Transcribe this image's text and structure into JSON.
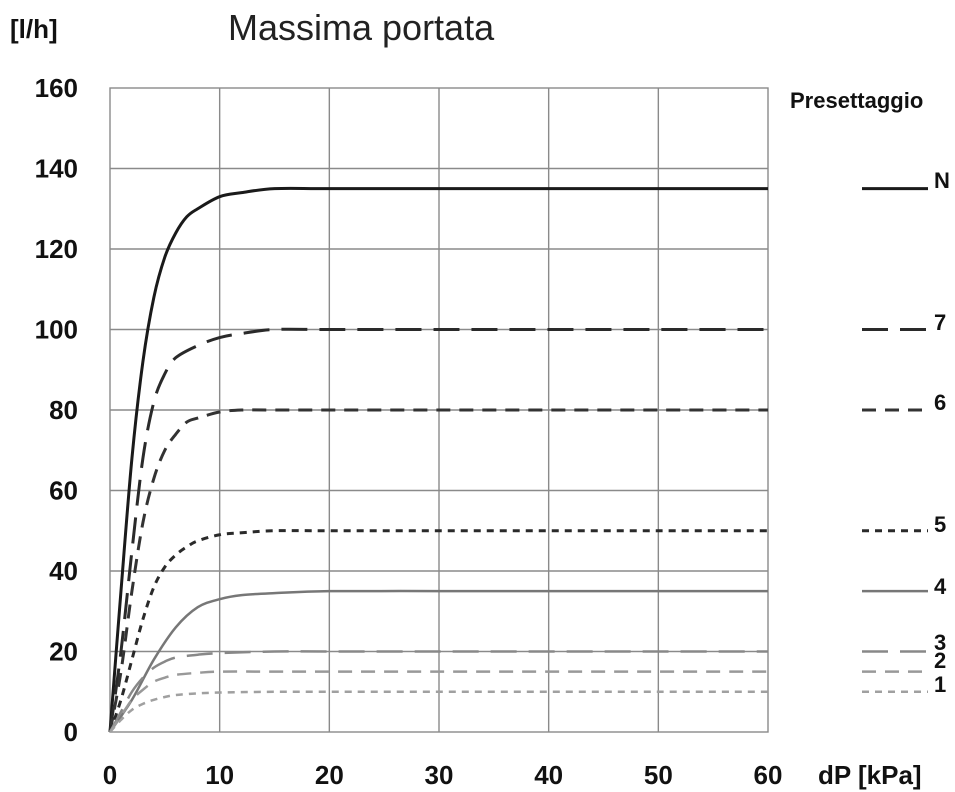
{
  "chart_data": {
    "type": "line",
    "title": "Massima portata",
    "ylabel": "[l/h]",
    "xlabel": "dP [kPa]",
    "xlim": [
      0,
      60
    ],
    "ylim": [
      0,
      160
    ],
    "x_ticks": [
      0,
      10,
      20,
      30,
      40,
      50,
      60
    ],
    "y_ticks": [
      0,
      20,
      40,
      60,
      80,
      100,
      120,
      140,
      160
    ],
    "grid": true,
    "legend_title": "Presettaggio",
    "legend_position": "right",
    "series": [
      {
        "name": "N",
        "color": "#1a1a1a",
        "dash": "solid",
        "width": 3,
        "x": [
          0,
          1,
          2,
          3,
          4,
          5,
          6,
          7,
          8,
          10,
          12,
          15,
          20,
          30,
          40,
          50,
          60
        ],
        "y": [
          0,
          35,
          68,
          92,
          108,
          118,
          124,
          128,
          130,
          133,
          134,
          135,
          135,
          135,
          135,
          135,
          135
        ]
      },
      {
        "name": "7",
        "color": "#2a2a2a",
        "dash": "long",
        "width": 3,
        "x": [
          0,
          1,
          2,
          3,
          4,
          5,
          6,
          8,
          10,
          12,
          15,
          20,
          30,
          40,
          50,
          60
        ],
        "y": [
          0,
          20,
          45,
          68,
          82,
          89,
          93,
          96,
          98,
          99,
          100,
          100,
          100,
          100,
          100,
          100
        ]
      },
      {
        "name": "6",
        "color": "#333333",
        "dash": "medium",
        "width": 3,
        "x": [
          0,
          1,
          2,
          3,
          4,
          5,
          6,
          7,
          8,
          10,
          12,
          15,
          20,
          30,
          40,
          50,
          60
        ],
        "y": [
          0,
          15,
          35,
          52,
          63,
          70,
          74,
          77,
          78,
          79.5,
          80,
          80,
          80,
          80,
          80,
          80,
          80
        ]
      },
      {
        "name": "5",
        "color": "#2a2a2a",
        "dash": "short",
        "width": 3,
        "x": [
          0,
          1,
          2,
          3,
          4,
          5,
          6,
          7,
          8,
          10,
          12,
          15,
          20,
          30,
          40,
          50,
          60
        ],
        "y": [
          0,
          8,
          18,
          28,
          36,
          41,
          44,
          46,
          47.5,
          49,
          49.5,
          50,
          50,
          50,
          50,
          50,
          50
        ]
      },
      {
        "name": "4",
        "color": "#777777",
        "dash": "solid",
        "width": 2.5,
        "x": [
          0,
          2,
          4,
          6,
          8,
          10,
          12,
          15,
          20,
          30,
          40,
          50,
          60
        ],
        "y": [
          0,
          8,
          18,
          26,
          31,
          33,
          34,
          34.5,
          35,
          35,
          35,
          35,
          35
        ]
      },
      {
        "name": "3",
        "color": "#888888",
        "dash": "long",
        "width": 2.5,
        "x": [
          0,
          1,
          2,
          3,
          4,
          5,
          6,
          8,
          10,
          15,
          20,
          30,
          40,
          50,
          60
        ],
        "y": [
          0,
          5,
          10,
          13.5,
          16,
          17.5,
          18.5,
          19.2,
          19.6,
          20,
          20,
          20,
          20,
          20,
          20
        ]
      },
      {
        "name": "2",
        "color": "#999999",
        "dash": "medium",
        "width": 2.5,
        "x": [
          0,
          1,
          2,
          3,
          4,
          5,
          6,
          8,
          10,
          15,
          20,
          30,
          40,
          50,
          60
        ],
        "y": [
          0,
          4,
          8,
          10.5,
          12.5,
          13.5,
          14.2,
          14.7,
          15,
          15,
          15,
          15,
          15,
          15,
          15
        ]
      },
      {
        "name": "1",
        "color": "#a0a0a0",
        "dash": "short",
        "width": 2.5,
        "x": [
          0,
          1,
          2,
          3,
          4,
          5,
          6,
          8,
          10,
          15,
          20,
          30,
          40,
          50,
          60
        ],
        "y": [
          0,
          3,
          5.5,
          7,
          8,
          8.7,
          9.2,
          9.6,
          9.8,
          10,
          10,
          10,
          10,
          10,
          10
        ]
      }
    ]
  }
}
